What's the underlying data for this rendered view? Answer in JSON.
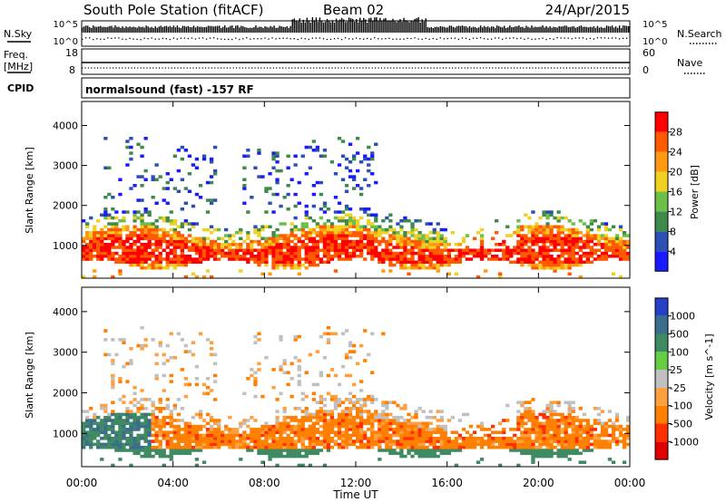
{
  "header": {
    "title": "South Pole Station (fitACF)",
    "beam": "Beam 02",
    "date": "24/Apr/2015"
  },
  "sky_panel": {
    "left_label": "N.Sky",
    "right_label": "N.Search",
    "left_ticks": [
      "10^5",
      "10^0"
    ],
    "right_ticks": [
      "10^5",
      "10^0"
    ]
  },
  "freq_panel": {
    "left_label_line1": "Freq.",
    "left_label_line2": "[MHz]",
    "right_label": "Nave",
    "left_ticks": [
      "18",
      "8"
    ],
    "right_ticks": [
      "60",
      "0"
    ]
  },
  "cpid_panel": {
    "label": "CPID",
    "text": "normalsound (fast) -157 RF"
  },
  "colors": {
    "power": [
      "#1a1aff",
      "#2b4fb3",
      "#3f8a4a",
      "#6cc04a",
      "#f0d020",
      "#ff9a10",
      "#ff5a00",
      "#ff0000"
    ],
    "velocity": [
      "#2640c8",
      "#3a6e8a",
      "#3f8a60",
      "#66cc44",
      "#c0c0c0",
      "#ffa040",
      "#ff8000",
      "#ff3000",
      "#e00000"
    ]
  },
  "chart_data": [
    {
      "type": "heatmap",
      "name": "power",
      "ylabel": "Slant Range [km]",
      "y_ticks": [
        1000,
        2000,
        3000,
        4000
      ],
      "ylim": [
        180,
        4600
      ],
      "xlim_hours": [
        0,
        24
      ],
      "colorbar_label": "Power [dB]",
      "colorbar_ticks": [
        4,
        8,
        12,
        16,
        20,
        24,
        28
      ],
      "colorbar_range": [
        0,
        32
      ]
    },
    {
      "type": "heatmap",
      "name": "velocity",
      "ylabel": "Slant Range [km]",
      "y_ticks": [
        1000,
        2000,
        3000,
        4000
      ],
      "ylim": [
        180,
        4600
      ],
      "xlim_hours": [
        0,
        24
      ],
      "colorbar_label": "Velocity [m s^-1]",
      "colorbar_ticks": [
        "1000",
        "500",
        "100",
        "25",
        "-25",
        "-100",
        "-500",
        "-1000"
      ]
    }
  ],
  "x_axis": {
    "ticks": [
      "00:00",
      "04:00",
      "08:00",
      "12:00",
      "16:00",
      "20:00",
      "00:00"
    ],
    "label": "Time UT"
  }
}
